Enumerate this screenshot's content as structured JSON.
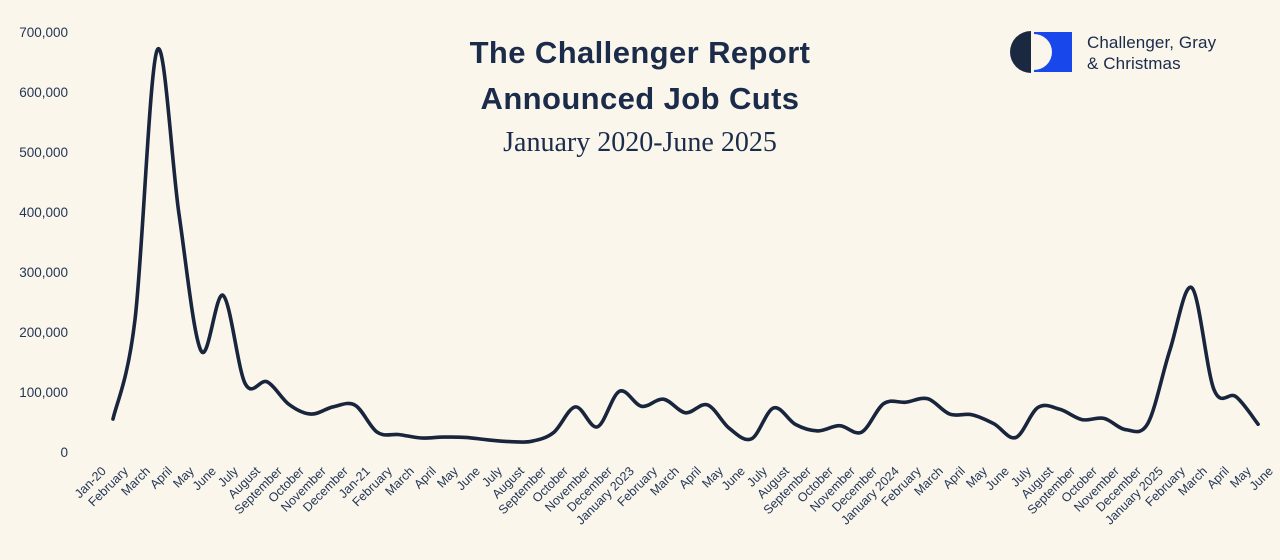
{
  "header": {
    "title_line1": "The Challenger Report",
    "title_line2": "Announced Job Cuts",
    "subtitle": "January 2020-June 2025"
  },
  "logo": {
    "line1": "Challenger, Gray",
    "line2": "& Christmas"
  },
  "colors": {
    "background": "#FAF6EC",
    "line": "#18253C",
    "title_text": "#1B2B4A",
    "axis_text": "#243655",
    "logo_blue": "#1847EC",
    "logo_navy": "#1B2940"
  },
  "chart_data": {
    "type": "line",
    "title": "The Challenger Report Announced Job Cuts",
    "subtitle": "January 2020-June 2025",
    "xlabel": "",
    "ylabel": "",
    "ylim": [
      0,
      700000
    ],
    "grid": false,
    "legend": false,
    "smoothed": true,
    "categories": [
      "Jan-20",
      "February",
      "March",
      "April",
      "May",
      "June",
      "July",
      "August",
      "September",
      "October",
      "November",
      "December",
      "Jan-21",
      "February",
      "March",
      "April",
      "May",
      "June",
      "July",
      "August",
      "September",
      "October",
      "November",
      "December",
      "January 2023",
      "February",
      "March",
      "April",
      "May",
      "June",
      "July",
      "August",
      "September",
      "October",
      "November",
      "December",
      "January 2024",
      "February",
      "March",
      "April",
      "May",
      "June",
      "July",
      "August",
      "September",
      "October",
      "November",
      "December",
      "January 2025",
      "February",
      "March",
      "April",
      "May",
      "June"
    ],
    "values": [
      null,
      56660,
      222288,
      671129,
      397016,
      170219,
      262649,
      115762,
      118581,
      80666,
      64797,
      77030,
      79552,
      34531,
      30603,
      25000,
      26500,
      26000,
      22000,
      19000,
      19500,
      33843,
      76835,
      43651,
      102943,
      77770,
      89703,
      66995,
      80089,
      40709,
      23697,
      75151,
      47457,
      36836,
      45510,
      34817,
      82307,
      84638,
      90309,
      64789,
      63816,
      48786,
      25885,
      75891,
      72821,
      55597,
      57727,
      38792,
      49795,
      172017,
      275240,
      105441,
      93816,
      47999
    ],
    "ytick_values": [
      0,
      100000,
      200000,
      300000,
      400000,
      500000,
      600000,
      700000
    ],
    "ytick_labels": [
      "0",
      "100,000",
      "200,000",
      "300,000",
      "400,000",
      "500,000",
      "600,000",
      "700,000"
    ]
  }
}
